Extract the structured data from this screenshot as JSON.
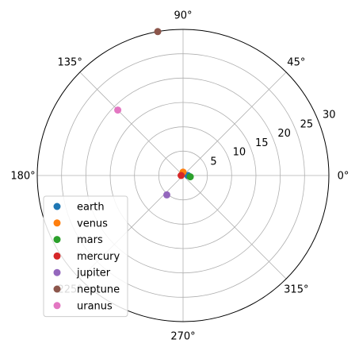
{
  "chart_data": {
    "type": "scatter",
    "projection": "polar",
    "angle_unit": "degrees",
    "theta_tick_labels": [
      "0°",
      "45°",
      "90°",
      "135°",
      "180°",
      "225°",
      "270°",
      "315°"
    ],
    "theta_ticks": [
      0,
      45,
      90,
      135,
      180,
      225,
      270,
      315
    ],
    "r_tick_labels": [
      "5",
      "10",
      "15",
      "20",
      "25",
      "30"
    ],
    "r_ticks": [
      5,
      10,
      15,
      20,
      25,
      30
    ],
    "rlim": [
      0,
      30
    ],
    "grid": true,
    "legend_location": "lower-left",
    "series": [
      {
        "name": "earth",
        "color": "#1f77b4",
        "points": [
          {
            "theta": 0,
            "r": 1.0
          }
        ]
      },
      {
        "name": "venus",
        "color": "#ff7f0e",
        "points": [
          {
            "theta": 90,
            "r": 0.7
          }
        ]
      },
      {
        "name": "mars",
        "color": "#2ca02c",
        "points": [
          {
            "theta": 350,
            "r": 1.5
          }
        ]
      },
      {
        "name": "mercury",
        "color": "#d62728",
        "points": [
          {
            "theta": 180,
            "r": 0.4
          }
        ]
      },
      {
        "name": "jupiter",
        "color": "#9467bd",
        "points": [
          {
            "theta": 230,
            "r": 5.2
          }
        ]
      },
      {
        "name": "neptune",
        "color": "#8c564b",
        "points": [
          {
            "theta": 100,
            "r": 30.0
          }
        ]
      },
      {
        "name": "uranus",
        "color": "#e377c2",
        "points": [
          {
            "theta": 135,
            "r": 19.0
          }
        ]
      }
    ]
  }
}
